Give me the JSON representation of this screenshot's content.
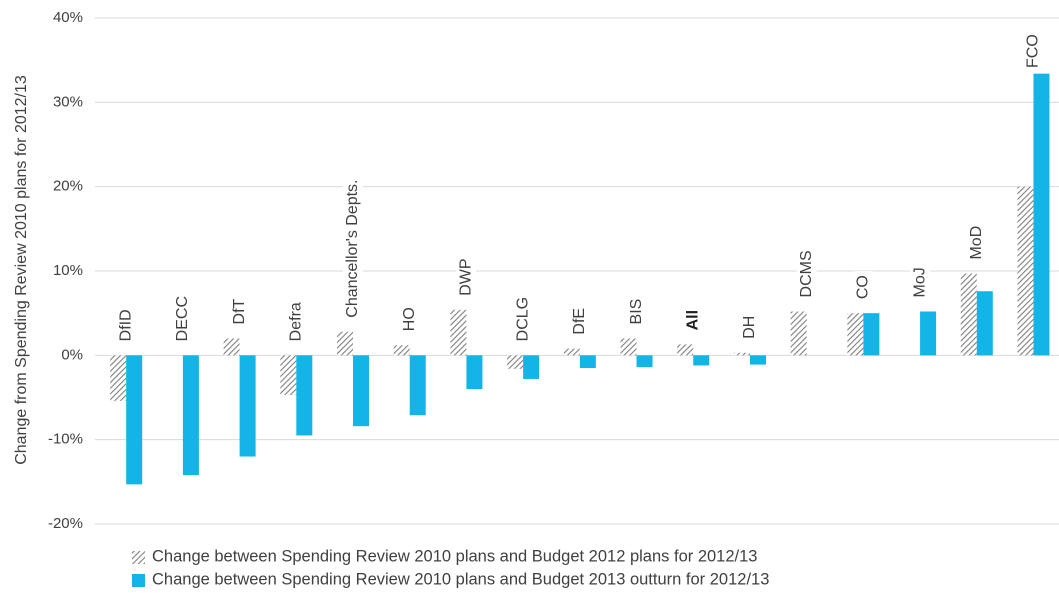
{
  "chart_data": {
    "type": "bar",
    "y_axis_label": "Change from Spending Review 2010 plans for 2012/13",
    "categories": [
      "DfID",
      "DECC",
      "DfT",
      "Defra",
      "Chancellor's Depts.",
      "HO",
      "DWP",
      "DCLG",
      "DfE",
      "BIS",
      "All",
      "DH",
      "DCMS",
      "CO",
      "MoJ",
      "MoD",
      "FCO"
    ],
    "bold_categories": [
      "All"
    ],
    "series": [
      {
        "name": "Change between Spending Review 2010 plans and Budget 2012 plans for 2012/13",
        "color": "#7f7f7f",
        "pattern": "hatch",
        "values": [
          -5.4,
          0,
          2.0,
          -4.7,
          2.8,
          1.2,
          5.4,
          -1.6,
          0.8,
          2.0,
          1.3,
          0.3,
          5.2,
          5.0,
          0,
          9.7,
          20.0
        ]
      },
      {
        "name": "Change between Spending Review 2010 plans and Budget 2013 outturn for 2012/13",
        "color": "#14b4e6",
        "pattern": "solid",
        "values": [
          -15.3,
          -14.2,
          -12.0,
          -9.5,
          -8.4,
          -7.1,
          -4.0,
          -2.8,
          -1.5,
          -1.4,
          -1.2,
          -1.1,
          0,
          5.0,
          5.2,
          7.6,
          33.4
        ]
      }
    ],
    "ylim": [
      -20,
      40
    ],
    "yticks": [
      {
        "value": -20,
        "label": "-20%"
      },
      {
        "value": -10,
        "label": "-10%"
      },
      {
        "value": 0,
        "label": "0%"
      },
      {
        "value": 10,
        "label": "10%"
      },
      {
        "value": 20,
        "label": "20%"
      },
      {
        "value": 30,
        "label": "30%"
      },
      {
        "value": 40,
        "label": "40%"
      }
    ],
    "grid": true
  }
}
